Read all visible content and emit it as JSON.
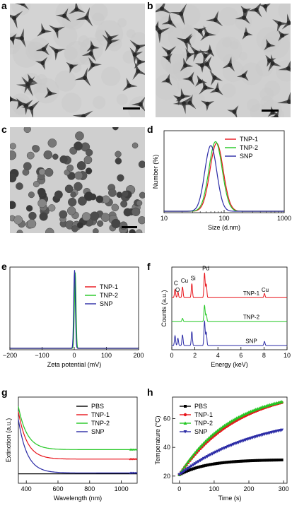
{
  "figure": {
    "panel_labels": [
      "a",
      "b",
      "c",
      "d",
      "e",
      "f",
      "g",
      "h"
    ]
  },
  "chart_data": [
    {
      "panel": "d",
      "type": "line",
      "xlabel": "Size (d.nm)",
      "ylabel": "Number (%)",
      "x_scale": "log",
      "xlim": [
        10,
        1000
      ],
      "x_ticks": [
        "10",
        "100",
        "1000"
      ],
      "legend_position": "top-right",
      "series": [
        {
          "name": "TNP-1",
          "color": "#e8141b",
          "peak_x": 75,
          "log_sigma": 0.11,
          "peak_y": 0.86
        },
        {
          "name": "TNP-2",
          "color": "#22c722",
          "peak_x": 72,
          "log_sigma": 0.11,
          "peak_y": 0.88
        },
        {
          "name": "SNP",
          "color": "#2b2ba6",
          "peak_x": 60,
          "log_sigma": 0.1,
          "peak_y": 0.83
        }
      ]
    },
    {
      "panel": "e",
      "type": "line",
      "xlabel": "Zeta potential (mV)",
      "xlim": [
        -200,
        200
      ],
      "x_ticks": [
        "−200",
        "−100",
        "0",
        "100",
        "200"
      ],
      "legend_position": "top-right",
      "series": [
        {
          "name": "TNP-1",
          "color": "#e8141b",
          "peak_x": 2,
          "width": 2.5,
          "peak_y": 0.93
        },
        {
          "name": "TNP-2",
          "color": "#22c722",
          "peak_x": 3,
          "width": 2.5,
          "peak_y": 0.95
        },
        {
          "name": "SNP",
          "color": "#2b2ba6",
          "peak_x": 1,
          "width": 2.5,
          "peak_y": 0.98
        }
      ]
    },
    {
      "panel": "f",
      "type": "line",
      "xlabel": "Energy (keV)",
      "ylabel": "Counts (a.u.)",
      "xlim": [
        0,
        10
      ],
      "x_ticks": [
        "0",
        "2",
        "4",
        "6",
        "8",
        "10"
      ],
      "peak_labels": [
        "C",
        "O",
        "Cu",
        "Si",
        "Pd",
        "Cu"
      ],
      "series": [
        {
          "name": "TNP-1",
          "color": "#e8141b",
          "offset": 0.62,
          "peaks": [
            [
              0.28,
              0.1
            ],
            [
              0.53,
              0.07
            ],
            [
              0.93,
              0.13
            ],
            [
              1.74,
              0.17
            ],
            [
              2.84,
              0.3
            ],
            [
              2.99,
              0.16
            ],
            [
              8.04,
              0.05
            ]
          ]
        },
        {
          "name": "TNP-2",
          "color": "#22c722",
          "offset": 0.33,
          "peaks": [
            [
              0.93,
              0.04
            ],
            [
              2.84,
              0.2
            ],
            [
              2.99,
              0.09
            ]
          ]
        },
        {
          "name": "SNP",
          "color": "#2b2ba6",
          "offset": 0.04,
          "peaks": [
            [
              0.28,
              0.12
            ],
            [
              0.53,
              0.09
            ],
            [
              0.93,
              0.13
            ],
            [
              1.74,
              0.17
            ],
            [
              2.84,
              0.3
            ],
            [
              2.99,
              0.16
            ],
            [
              8.04,
              0.05
            ]
          ]
        }
      ]
    },
    {
      "panel": "g",
      "type": "line",
      "xlabel": "Wavelength (nm)",
      "ylabel": "Extinction (a.u.)",
      "xlim": [
        350,
        1100
      ],
      "x_ticks": [
        "400",
        "600",
        "800",
        "1000"
      ],
      "legend_position": "top-right",
      "series": [
        {
          "name": "PBS",
          "color": "#000000",
          "baseline": 0.11,
          "amp": 0.0
        },
        {
          "name": "TNP-1",
          "color": "#e8141b",
          "baseline": 0.28,
          "amp": 0.55
        },
        {
          "name": "TNP-2",
          "color": "#22c722",
          "baseline": 0.39,
          "amp": 0.5
        },
        {
          "name": "SNP",
          "color": "#2b2ba6",
          "baseline": 0.12,
          "amp": 0.62
        }
      ]
    },
    {
      "panel": "h",
      "type": "line",
      "xlabel": "Time (s)",
      "ylabel": "Temperature (°C)",
      "xlim": [
        -20,
        310
      ],
      "ylim": [
        15,
        75
      ],
      "x_ticks": [
        "0",
        "100",
        "200",
        "300"
      ],
      "y_ticks": [
        "20",
        "40",
        "60"
      ],
      "legend_position": "top-left",
      "series": [
        {
          "name": "PBS",
          "color": "#000000",
          "marker": "square",
          "start": 21,
          "end": 31.5,
          "tau": 80
        },
        {
          "name": "TNP-1",
          "color": "#e8141b",
          "marker": "circle",
          "start": 21,
          "end": 82,
          "tau": 170
        },
        {
          "name": "TNP-2",
          "color": "#22c722",
          "marker": "triangle",
          "start": 21,
          "end": 80,
          "tau": 150
        },
        {
          "name": "SNP",
          "color": "#2b2ba6",
          "marker": "triangle-down",
          "start": 21,
          "end": 64,
          "tau": 230
        }
      ]
    }
  ]
}
